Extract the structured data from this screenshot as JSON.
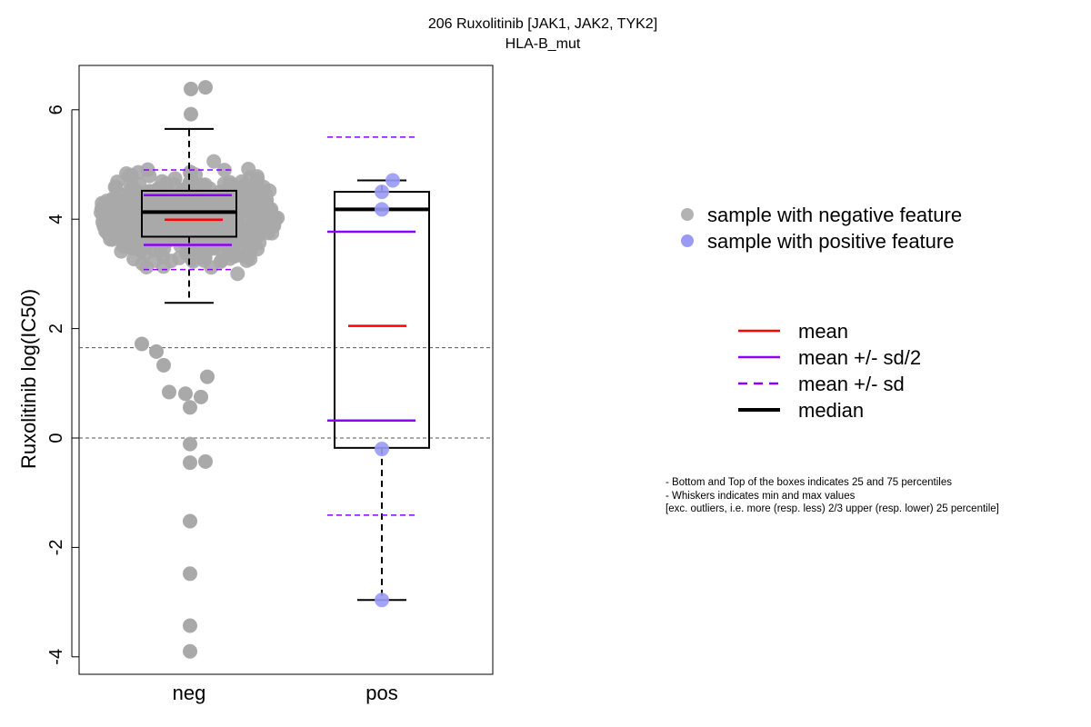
{
  "chart_data": {
    "type": "boxplot",
    "title": "206 Ruxolitinib [JAK1, JAK2, TYK2]",
    "subtitle": "HLA-B_mut",
    "ylabel": "Ruxolitinib log(IC50)",
    "xlabel": "",
    "categories": [
      "neg",
      "pos"
    ],
    "ylim": [
      -4.3,
      6.8
    ],
    "yticks": [
      -4,
      -2,
      0,
      2,
      4,
      6
    ],
    "reference_lines": [
      1.65,
      0
    ],
    "groups": [
      {
        "name": "neg",
        "color": "#a9a9a9",
        "box": {
          "q1": 3.68,
          "median": 4.13,
          "q3": 4.52,
          "whisker_low": 2.47,
          "whisker_high": 5.65
        },
        "mean": 3.99,
        "mean_plus_half_sd": 4.44,
        "mean_minus_half_sd": 3.53,
        "mean_plus_sd": 4.9,
        "mean_minus_sd": 3.08,
        "outliers": [
          6.38,
          6.41,
          5.92,
          1.72,
          1.58,
          1.33,
          1.12,
          0.84,
          0.81,
          0.75,
          0.56,
          -0.11,
          -0.45,
          -0.43,
          -1.52,
          -2.48,
          -3.43,
          -3.9
        ]
      },
      {
        "name": "pos",
        "color": "#9a9af5",
        "box": {
          "q1": -0.18,
          "median": 4.18,
          "q3": 4.5,
          "whisker_low": -2.96,
          "whisker_high": 4.71
        },
        "mean": 2.05,
        "mean_plus_half_sd": 3.77,
        "mean_minus_half_sd": 0.32,
        "mean_plus_sd": 5.5,
        "mean_minus_sd": -1.41,
        "points": [
          4.71,
          4.5,
          4.18,
          -0.2,
          -2.96
        ]
      }
    ],
    "legend_samples": [
      {
        "label": "sample with negative feature",
        "color": "#b3b3b3"
      },
      {
        "label": "sample with positive feature",
        "color": "#9a9af5"
      }
    ],
    "legend_lines": [
      {
        "label": "mean",
        "color": "#ff0000",
        "style": "solid"
      },
      {
        "label": "mean +/- sd/2",
        "color": "#8b00ff",
        "style": "solid"
      },
      {
        "label": "mean +/- sd",
        "color": "#8b00ff",
        "style": "dashed"
      },
      {
        "label": "median",
        "color": "#000000",
        "style": "thick"
      }
    ],
    "notes": [
      "- Bottom and Top of the boxes indicates 25 and 75 percentiles",
      "- Whiskers indicates min and max values",
      "[exc. outliers, i.e. more (resp. less) 2/3 upper (resp. lower) 25 percentile]"
    ]
  }
}
